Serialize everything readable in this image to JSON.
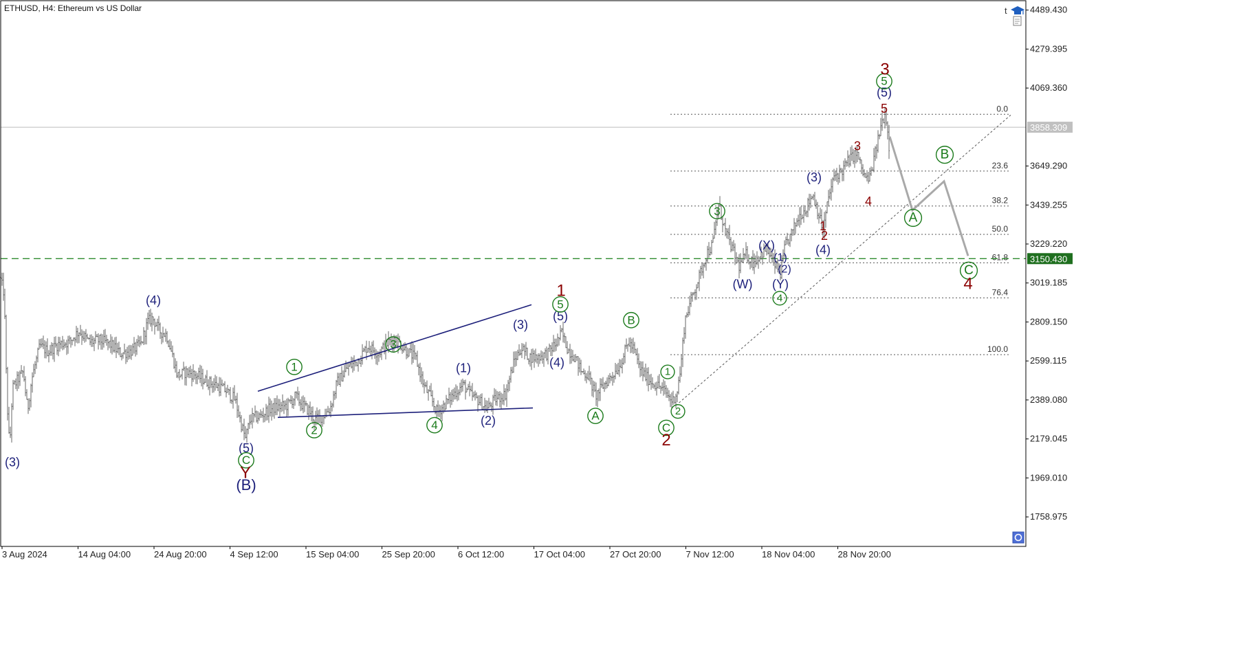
{
  "window": {
    "symbol_title": "ETHUSD, H4:  Ethereum vs US Dollar",
    "corner_letter": "t",
    "icons": [
      "graduation-cap-icon",
      "document-icon",
      "object-list-icon"
    ]
  },
  "colors": {
    "background": "#ffffff",
    "price_line": "#666666",
    "frame": "#000000",
    "navy": "#1c1f7a",
    "green": "#1a7a1a",
    "darkred": "#8b0000",
    "fib": "#555555",
    "level_line": "#2e8b2e",
    "current_price_line": "#bbbbbb",
    "projection": "#a9a9a9",
    "current_price_tag": "#c0c0c0",
    "level_tag": "#1f6f1f"
  },
  "chart_data": {
    "type": "line",
    "subtype": "candlestick-bars",
    "symbol": "ETHUSD",
    "timeframe": "H4",
    "description": "Ethereum vs US Dollar",
    "ylim": [
      1600,
      4540
    ],
    "y_ticks": [
      "4489.430",
      "4279.395",
      "4069.360",
      "3649.290",
      "3439.255",
      "3229.220",
      "3019.185",
      "2809.150",
      "2599.115",
      "2389.080",
      "2179.045",
      "1969.010",
      "1758.975"
    ],
    "x_ticks": [
      "3 Aug 2024",
      "14 Aug 04:00",
      "24 Aug 20:00",
      "4 Sep 12:00",
      "15 Sep 04:00",
      "25 Sep 20:00",
      "6 Oct 12:00",
      "17 Oct 04:00",
      "27 Oct 20:00",
      "7 Nov 12:00",
      "18 Nov 04:00",
      "28 Nov 20:00"
    ],
    "price_path": [
      [
        0,
        3050
      ],
      [
        6,
        2960
      ],
      [
        10,
        2400
      ],
      [
        14,
        2120
      ],
      [
        18,
        2450
      ],
      [
        26,
        2500
      ],
      [
        34,
        2540
      ],
      [
        40,
        2330
      ],
      [
        46,
        2500
      ],
      [
        58,
        2680
      ],
      [
        70,
        2650
      ],
      [
        85,
        2690
      ],
      [
        100,
        2700
      ],
      [
        115,
        2760
      ],
      [
        130,
        2700
      ],
      [
        145,
        2710
      ],
      [
        160,
        2690
      ],
      [
        175,
        2640
      ],
      [
        190,
        2650
      ],
      [
        205,
        2690
      ],
      [
        215,
        2810
      ],
      [
        222,
        2830
      ],
      [
        232,
        2760
      ],
      [
        242,
        2740
      ],
      [
        250,
        2640
      ],
      [
        258,
        2520
      ],
      [
        272,
        2540
      ],
      [
        286,
        2520
      ],
      [
        300,
        2490
      ],
      [
        314,
        2470
      ],
      [
        328,
        2440
      ],
      [
        342,
        2390
      ],
      [
        350,
        2270
      ],
      [
        357,
        2180
      ],
      [
        364,
        2290
      ],
      [
        378,
        2300
      ],
      [
        392,
        2340
      ],
      [
        405,
        2350
      ],
      [
        418,
        2360
      ],
      [
        430,
        2410
      ],
      [
        440,
        2360
      ],
      [
        450,
        2330
      ],
      [
        458,
        2280
      ],
      [
        468,
        2300
      ],
      [
        480,
        2340
      ],
      [
        490,
        2480
      ],
      [
        505,
        2560
      ],
      [
        520,
        2600
      ],
      [
        535,
        2680
      ],
      [
        550,
        2640
      ],
      [
        565,
        2700
      ],
      [
        574,
        2720
      ],
      [
        590,
        2660
      ],
      [
        605,
        2610
      ],
      [
        617,
        2460
      ],
      [
        625,
        2410
      ],
      [
        636,
        2320
      ],
      [
        650,
        2380
      ],
      [
        662,
        2430
      ],
      [
        674,
        2470
      ],
      [
        686,
        2410
      ],
      [
        698,
        2380
      ],
      [
        708,
        2340
      ],
      [
        720,
        2390
      ],
      [
        735,
        2420
      ],
      [
        748,
        2600
      ],
      [
        758,
        2670
      ],
      [
        770,
        2620
      ],
      [
        782,
        2620
      ],
      [
        796,
        2640
      ],
      [
        808,
        2690
      ],
      [
        817,
        2750
      ],
      [
        826,
        2660
      ],
      [
        836,
        2620
      ],
      [
        846,
        2540
      ],
      [
        856,
        2520
      ],
      [
        866,
        2410
      ],
      [
        878,
        2470
      ],
      [
        890,
        2520
      ],
      [
        902,
        2580
      ],
      [
        914,
        2700
      ],
      [
        922,
        2660
      ],
      [
        930,
        2560
      ],
      [
        940,
        2510
      ],
      [
        950,
        2480
      ],
      [
        960,
        2460
      ],
      [
        970,
        2420
      ],
      [
        978,
        2380
      ],
      [
        985,
        2440
      ],
      [
        990,
        2560
      ],
      [
        996,
        2820
      ],
      [
        1006,
        2940
      ],
      [
        1016,
        3040
      ],
      [
        1028,
        3180
      ],
      [
        1036,
        3220
      ],
      [
        1045,
        3440
      ],
      [
        1055,
        3300
      ],
      [
        1065,
        3200
      ],
      [
        1075,
        3110
      ],
      [
        1085,
        3170
      ],
      [
        1095,
        3130
      ],
      [
        1105,
        3170
      ],
      [
        1115,
        3200
      ],
      [
        1125,
        3130
      ],
      [
        1135,
        3070
      ],
      [
        1142,
        3220
      ],
      [
        1152,
        3290
      ],
      [
        1162,
        3380
      ],
      [
        1172,
        3420
      ],
      [
        1182,
        3500
      ],
      [
        1190,
        3400
      ],
      [
        1197,
        3300
      ],
      [
        1205,
        3480
      ],
      [
        1214,
        3600
      ],
      [
        1224,
        3620
      ],
      [
        1234,
        3680
      ],
      [
        1246,
        3720
      ],
      [
        1256,
        3600
      ],
      [
        1264,
        3570
      ],
      [
        1272,
        3700
      ],
      [
        1282,
        3880
      ],
      [
        1288,
        3940
      ],
      [
        1294,
        3720
      ]
    ],
    "fibonacci_levels": [
      {
        "label": "0.0",
        "value": 3928
      },
      {
        "label": "23.6",
        "value": 3622
      },
      {
        "label": "38.2",
        "value": 3434
      },
      {
        "label": "50.0",
        "value": 3281
      },
      {
        "label": "61.8",
        "value": 3128
      },
      {
        "label": "76.4",
        "value": 2939
      },
      {
        "label": "100.0",
        "value": 2633
      }
    ],
    "current_price": "3858.309",
    "horizontal_level": "3150.430",
    "projection_path": [
      [
        1294,
        3808
      ],
      [
        1327,
        3411
      ],
      [
        1373,
        3567
      ],
      [
        1408,
        3165
      ]
    ],
    "trend_lines": [
      {
        "name": "triangle-upper",
        "style": "solid",
        "points": [
          [
            375,
            2436
          ],
          [
            773,
            2902
          ]
        ]
      },
      {
        "name": "triangle-lower",
        "style": "solid",
        "points": [
          [
            404,
            2295
          ],
          [
            775,
            2346
          ]
        ]
      },
      {
        "name": "channel",
        "style": "dashed",
        "points": [
          [
            983,
            2359
          ],
          [
            1470,
            3924
          ]
        ]
      }
    ],
    "wave_labels": [
      {
        "text": "(3)",
        "color": "navy",
        "size": 18,
        "at": [
          18,
          2053
        ]
      },
      {
        "text": "(4)",
        "color": "navy",
        "size": 18,
        "at": [
          223,
          2926
        ]
      },
      {
        "text": "(5)",
        "color": "navy",
        "size": 18,
        "at": [
          358,
          2130
        ]
      },
      {
        "text": "C",
        "color": "green",
        "size": 18,
        "circled": true,
        "at": [
          358,
          2064
        ]
      },
      {
        "text": "Y",
        "color": "darkred",
        "size": 24,
        "at": [
          357,
          1996
        ]
      },
      {
        "text": "(B)",
        "color": "navy",
        "size": 22,
        "at": [
          358,
          1932
        ]
      },
      {
        "text": "1",
        "color": "green",
        "size": 18,
        "circled": true,
        "at": [
          428,
          2567
        ]
      },
      {
        "text": "2",
        "color": "green",
        "size": 18,
        "circled": true,
        "at": [
          457,
          2226
        ]
      },
      {
        "text": "3",
        "color": "green",
        "size": 18,
        "circled": true,
        "at": [
          572,
          2688
        ]
      },
      {
        "text": "4",
        "color": "green",
        "size": 18,
        "circled": true,
        "at": [
          632,
          2253
        ]
      },
      {
        "text": "(1)",
        "color": "navy",
        "size": 18,
        "at": [
          674,
          2561
        ]
      },
      {
        "text": "(2)",
        "color": "navy",
        "size": 18,
        "at": [
          710,
          2277
        ]
      },
      {
        "text": "(3)",
        "color": "navy",
        "size": 18,
        "at": [
          757,
          2795
        ]
      },
      {
        "text": "(4)",
        "color": "navy",
        "size": 18,
        "at": [
          810,
          2591
        ]
      },
      {
        "text": "(5)",
        "color": "navy",
        "size": 18,
        "at": [
          815,
          2841
        ]
      },
      {
        "text": "5",
        "color": "green",
        "size": 18,
        "circled": true,
        "at": [
          815,
          2904
        ]
      },
      {
        "text": "1",
        "color": "darkred",
        "size": 24,
        "at": [
          816,
          2978
        ]
      },
      {
        "text": "A",
        "color": "green",
        "size": 18,
        "circled": true,
        "at": [
          866,
          2303
        ]
      },
      {
        "text": "B",
        "color": "green",
        "size": 18,
        "circled": true,
        "at": [
          918,
          2819
        ]
      },
      {
        "text": "1",
        "color": "green",
        "size": 16,
        "circled": true,
        "at": [
          971,
          2540
        ]
      },
      {
        "text": "2",
        "color": "green",
        "size": 16,
        "circled": true,
        "at": [
          986,
          2327
        ]
      },
      {
        "text": "C",
        "color": "green",
        "size": 18,
        "circled": true,
        "at": [
          969,
          2239
        ]
      },
      {
        "text": "2",
        "color": "darkred",
        "size": 24,
        "at": [
          969,
          2173
        ]
      },
      {
        "text": "3",
        "color": "green",
        "size": 18,
        "circled": true,
        "at": [
          1043,
          3406
        ]
      },
      {
        "text": "(W)",
        "color": "navy",
        "size": 18,
        "at": [
          1080,
          3013
        ]
      },
      {
        "text": "(X)",
        "color": "navy",
        "size": 18,
        "at": [
          1115,
          3221
        ]
      },
      {
        "text": "(1)",
        "color": "navy",
        "size": 16,
        "at": [
          1135,
          3156
        ]
      },
      {
        "text": "(2)",
        "color": "navy",
        "size": 16,
        "at": [
          1141,
          3093
        ]
      },
      {
        "text": "(Y)",
        "color": "navy",
        "size": 18,
        "at": [
          1135,
          3013
        ]
      },
      {
        "text": "4",
        "color": "green",
        "size": 16,
        "circled": true,
        "at": [
          1134,
          2937
        ]
      },
      {
        "text": "(4)",
        "color": "navy",
        "size": 18,
        "at": [
          1197,
          3198
        ]
      },
      {
        "text": "1",
        "color": "darkred",
        "size": 18,
        "at": [
          1197,
          3325
        ]
      },
      {
        "text": "2",
        "color": "darkred",
        "size": 18,
        "at": [
          1199,
          3274
        ]
      },
      {
        "text": "(3)",
        "color": "navy",
        "size": 18,
        "at": [
          1184,
          3588
        ]
      },
      {
        "text": "3",
        "color": "darkred",
        "size": 18,
        "at": [
          1247,
          3756
        ]
      },
      {
        "text": "4",
        "color": "darkred",
        "size": 18,
        "at": [
          1263,
          3458
        ]
      },
      {
        "text": "5",
        "color": "darkred",
        "size": 18,
        "at": [
          1286,
          3958
        ]
      },
      {
        "text": "(5)",
        "color": "navy",
        "size": 18,
        "at": [
          1286,
          4046
        ]
      },
      {
        "text": "5",
        "color": "green",
        "size": 18,
        "circled": true,
        "at": [
          1286,
          4106
        ]
      },
      {
        "text": "3",
        "color": "darkred",
        "size": 24,
        "at": [
          1287,
          4169
        ]
      },
      {
        "text": "A",
        "color": "green",
        "size": 20,
        "circled": true,
        "at": [
          1328,
          3370
        ]
      },
      {
        "text": "B",
        "color": "green",
        "size": 20,
        "circled": true,
        "at": [
          1374,
          3710
        ]
      },
      {
        "text": "C",
        "color": "green",
        "size": 20,
        "circled": true,
        "at": [
          1409,
          3086
        ]
      },
      {
        "text": "4",
        "color": "darkred",
        "size": 24,
        "at": [
          1408,
          3015
        ]
      }
    ]
  }
}
